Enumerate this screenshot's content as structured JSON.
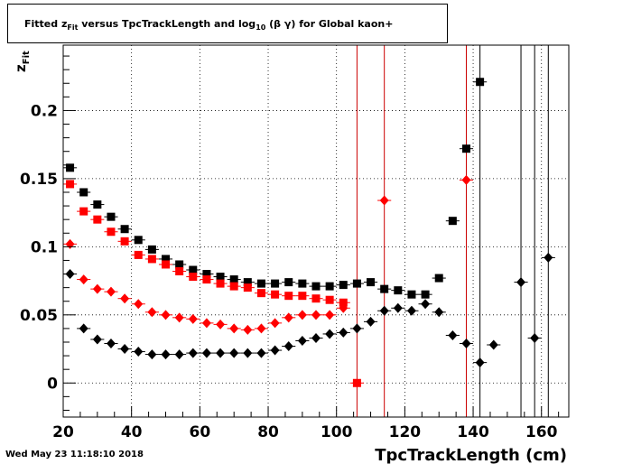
{
  "title": {
    "prefix": "Fitted  z",
    "prefix_sub": "Fit",
    "middle": "  versus TpcTrackLength and log",
    "middle_sub": "10",
    "suffix": " (β γ) for Global kaon+"
  },
  "footer": {
    "timestamp": "Wed May 23 11:18:10 2018"
  },
  "chart_data": {
    "type": "scatter",
    "title": "Fitted z_Fit versus TpcTrackLength and log10 (β γ) for Global kaon+",
    "xlabel": "TpcTrackLength (cm)",
    "ylabel": "z",
    "ylabel_sub": "Fit",
    "xlim": [
      20,
      168
    ],
    "ylim": [
      -0.025,
      0.248
    ],
    "grid": true,
    "x_ticks": [
      20,
      40,
      60,
      80,
      100,
      120,
      140,
      160
    ],
    "y_ticks": [
      0,
      0.05,
      0.1,
      0.15,
      0.2
    ],
    "y_tick_labels": [
      "0",
      "0.05",
      "0.1",
      "0.15",
      "0.2"
    ],
    "series": [
      {
        "marker": "square",
        "color": "#000000",
        "points": [
          [
            22,
            0.158
          ],
          [
            26,
            0.14
          ],
          [
            30,
            0.131
          ],
          [
            34,
            0.122
          ],
          [
            38,
            0.113
          ],
          [
            42,
            0.105
          ],
          [
            46,
            0.098
          ],
          [
            50,
            0.091
          ],
          [
            54,
            0.087
          ],
          [
            58,
            0.083
          ],
          [
            62,
            0.08
          ],
          [
            66,
            0.078
          ],
          [
            70,
            0.076
          ],
          [
            74,
            0.074
          ],
          [
            78,
            0.073
          ],
          [
            82,
            0.073
          ],
          [
            86,
            0.074
          ],
          [
            90,
            0.073
          ],
          [
            94,
            0.071
          ],
          [
            98,
            0.071
          ],
          [
            102,
            0.072
          ],
          [
            106,
            0.073
          ],
          [
            110,
            0.074
          ],
          [
            114,
            0.069
          ],
          [
            118,
            0.068
          ],
          [
            122,
            0.065
          ],
          [
            126,
            0.065
          ],
          [
            130,
            0.077
          ],
          [
            134,
            0.119
          ],
          [
            138,
            0.172
          ],
          [
            142,
            0.221
          ]
        ]
      },
      {
        "marker": "square",
        "color": "#ff0000",
        "points": [
          [
            22,
            0.146
          ],
          [
            26,
            0.126
          ],
          [
            30,
            0.12
          ],
          [
            34,
            0.111
          ],
          [
            38,
            0.104
          ],
          [
            42,
            0.094
          ],
          [
            46,
            0.091
          ],
          [
            50,
            0.087
          ],
          [
            54,
            0.082
          ],
          [
            58,
            0.078
          ],
          [
            62,
            0.076
          ],
          [
            66,
            0.073
          ],
          [
            70,
            0.071
          ],
          [
            74,
            0.07
          ],
          [
            78,
            0.066
          ],
          [
            82,
            0.065
          ],
          [
            86,
            0.064
          ],
          [
            90,
            0.064
          ],
          [
            94,
            0.062
          ],
          [
            98,
            0.061
          ],
          [
            102,
            0.059
          ],
          [
            106,
            0.0
          ]
        ]
      },
      {
        "marker": "diamond",
        "color": "#ff0000",
        "points": [
          [
            22,
            0.102
          ],
          [
            26,
            0.076
          ],
          [
            30,
            0.069
          ],
          [
            34,
            0.067
          ],
          [
            38,
            0.062
          ],
          [
            42,
            0.058
          ],
          [
            46,
            0.052
          ],
          [
            50,
            0.05
          ],
          [
            54,
            0.048
          ],
          [
            58,
            0.047
          ],
          [
            62,
            0.044
          ],
          [
            66,
            0.043
          ],
          [
            70,
            0.04
          ],
          [
            74,
            0.039
          ],
          [
            78,
            0.04
          ],
          [
            82,
            0.044
          ],
          [
            86,
            0.048
          ],
          [
            90,
            0.05
          ],
          [
            94,
            0.05
          ],
          [
            98,
            0.05
          ],
          [
            102,
            0.055
          ],
          [
            114,
            0.134
          ],
          [
            138,
            0.149
          ]
        ]
      },
      {
        "marker": "diamond",
        "color": "#000000",
        "points": [
          [
            22,
            0.08
          ],
          [
            26,
            0.04
          ],
          [
            30,
            0.032
          ],
          [
            34,
            0.029
          ],
          [
            38,
            0.025
          ],
          [
            42,
            0.023
          ],
          [
            46,
            0.021
          ],
          [
            50,
            0.021
          ],
          [
            54,
            0.021
          ],
          [
            58,
            0.022
          ],
          [
            62,
            0.022
          ],
          [
            66,
            0.022
          ],
          [
            70,
            0.022
          ],
          [
            74,
            0.022
          ],
          [
            78,
            0.022
          ],
          [
            82,
            0.024
          ],
          [
            86,
            0.027
          ],
          [
            90,
            0.031
          ],
          [
            94,
            0.033
          ],
          [
            98,
            0.036
          ],
          [
            102,
            0.037
          ],
          [
            106,
            0.04
          ],
          [
            110,
            0.045
          ],
          [
            114,
            0.053
          ],
          [
            118,
            0.055
          ],
          [
            122,
            0.053
          ],
          [
            126,
            0.058
          ],
          [
            130,
            0.052
          ],
          [
            134,
            0.035
          ],
          [
            138,
            0.029
          ],
          [
            142,
            0.015
          ],
          [
            146,
            0.028
          ],
          [
            154,
            0.074
          ],
          [
            158,
            0.033
          ],
          [
            162,
            0.092
          ]
        ]
      }
    ],
    "red_vertical_lines_x": [
      106,
      114,
      138
    ],
    "black_vertical_lines_x": [
      142,
      154,
      158,
      162
    ]
  }
}
